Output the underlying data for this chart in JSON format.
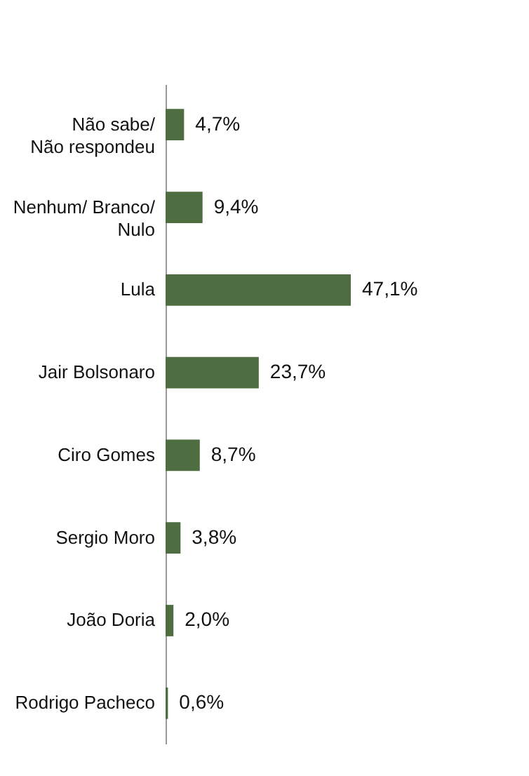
{
  "chart_data": {
    "type": "bar",
    "orientation": "horizontal",
    "categories": [
      "Não sabe/\nNão respondeu",
      "Nenhum/ Branco/\nNulo",
      "Lula",
      "Jair Bolsonaro",
      "Ciro Gomes",
      "Sergio Moro",
      "João Doria",
      "Rodrigo Pacheco"
    ],
    "values": [
      4.7,
      9.4,
      47.1,
      23.7,
      8.7,
      3.8,
      2.0,
      0.6
    ],
    "value_labels": [
      "4,7%",
      "9,4%",
      "47,1%",
      "23,7%",
      "8,7%",
      "3,8%",
      "2,0%",
      "0,6%"
    ],
    "color": "#4e6e42"
  }
}
